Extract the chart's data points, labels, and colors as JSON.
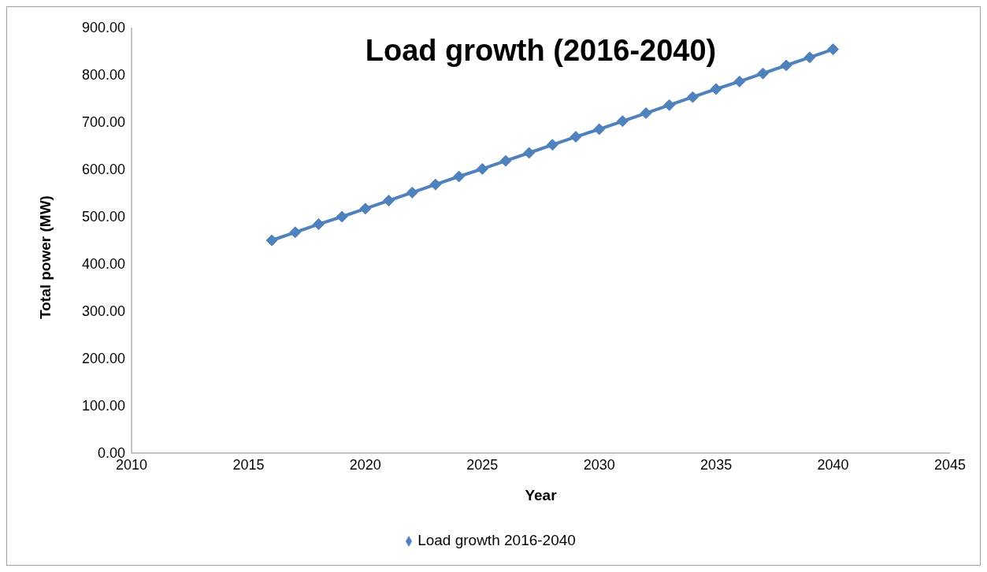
{
  "chart_data": {
    "type": "line",
    "title": "Load growth (2016-2040)",
    "xlabel": "Year",
    "ylabel": "Total power (MW)",
    "x": [
      2016,
      2017,
      2018,
      2019,
      2020,
      2021,
      2022,
      2023,
      2024,
      2025,
      2026,
      2027,
      2028,
      2029,
      2030,
      2031,
      2032,
      2033,
      2034,
      2035,
      2036,
      2037,
      2038,
      2039,
      2040
    ],
    "series": [
      {
        "name": "Load growth 2016-2040",
        "color": "#4f81bd",
        "values": [
          450,
          467,
          484,
          500,
          517,
          534,
          551,
          568,
          585,
          601,
          618,
          635,
          652,
          669,
          685,
          702,
          719,
          736,
          753,
          770,
          786,
          803,
          820,
          837,
          854
        ]
      }
    ],
    "xlim": [
      2010,
      2045
    ],
    "xticks": [
      2010,
      2015,
      2020,
      2025,
      2030,
      2035,
      2040,
      2045
    ],
    "ylim": [
      0,
      900
    ],
    "yticks": [
      {
        "value": 0,
        "label": "0.00"
      },
      {
        "value": 100,
        "label": "100.00"
      },
      {
        "value": 200,
        "label": "200.00"
      },
      {
        "value": 300,
        "label": "300.00"
      },
      {
        "value": 400,
        "label": "400.00"
      },
      {
        "value": 500,
        "label": "500.00"
      },
      {
        "value": 600,
        "label": "600.00"
      },
      {
        "value": 700,
        "label": "700.00"
      },
      {
        "value": 800,
        "label": "800.00"
      },
      {
        "value": 900,
        "label": "900.00"
      }
    ],
    "grid": false,
    "legend": "bottom",
    "marker": "diamond",
    "line_style": "solid"
  }
}
